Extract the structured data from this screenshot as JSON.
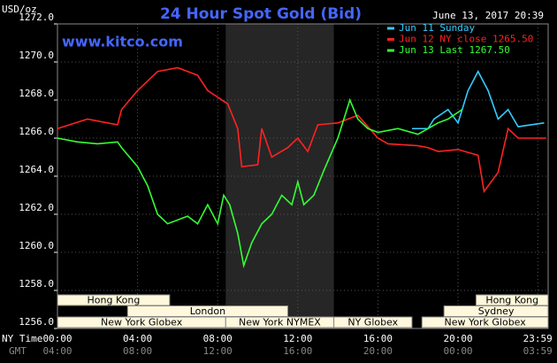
{
  "chart_data": {
    "type": "line",
    "title": "24 Hour Spot Gold (Bid)",
    "subtitle": "www.kitco.com",
    "timestamp": "June 13, 2017 20:39",
    "y_label": "USD/oz",
    "x_label": "NY Time",
    "x2_label": "GMT",
    "grid": true,
    "xlim": [
      0,
      24.5
    ],
    "ylim": [
      1256,
      1272
    ],
    "yticks": [
      {
        "value": 1256,
        "label": "1256.0"
      },
      {
        "value": 1258,
        "label": "1258.0"
      },
      {
        "value": 1260,
        "label": "1260.0"
      },
      {
        "value": 1262,
        "label": "1262.0"
      },
      {
        "value": 1264,
        "label": "1264.0"
      },
      {
        "value": 1266,
        "label": "1266.0"
      },
      {
        "value": 1268,
        "label": "1268.0"
      },
      {
        "value": 1270,
        "label": "1270.0"
      },
      {
        "value": 1272,
        "label": "1272.0"
      }
    ],
    "xticks": [
      {
        "value": 0,
        "label": "00:00"
      },
      {
        "value": 4,
        "label": "04:00"
      },
      {
        "value": 8,
        "label": "08:00"
      },
      {
        "value": 12,
        "label": "12:00"
      },
      {
        "value": 16,
        "label": "16:00"
      },
      {
        "value": 20,
        "label": "20:00"
      },
      {
        "value": 23.98,
        "label": "23:59"
      }
    ],
    "gmt_tick_labels": [
      "04:00",
      "08:00",
      "12:00",
      "16:00",
      "20:00",
      "00:00",
      "03:59"
    ],
    "highlight_x": [
      8.4,
      13.8
    ],
    "series": [
      {
        "name": "Jun 11 Sunday",
        "color": "#33ccff",
        "x": [
          17.7,
          18.5,
          18.8,
          19.5,
          20,
          20.5,
          21,
          21.5,
          22,
          22.5,
          23,
          24.3
        ],
        "values": [
          1266.5,
          1266.5,
          1267,
          1267.5,
          1266.8,
          1268.5,
          1269.5,
          1268.5,
          1267,
          1267.5,
          1266.6,
          1266.8
        ]
      },
      {
        "name": "Jun 12 NY close 1265.50",
        "color": "#ff2222",
        "x": [
          0,
          1.5,
          3,
          3.2,
          4,
          5,
          6,
          7,
          7.5,
          8.5,
          9,
          9.2,
          10,
          10.2,
          10.7,
          11.5,
          12,
          12.5,
          13,
          14,
          15,
          16,
          16.5,
          18,
          18.5,
          19,
          20,
          21,
          21.3,
          22,
          22.5,
          23,
          24.4
        ],
        "values": [
          1266.5,
          1267,
          1266.7,
          1267.5,
          1268.5,
          1269.5,
          1269.7,
          1269.3,
          1268.5,
          1267.8,
          1266.5,
          1264.5,
          1264.6,
          1266.5,
          1265,
          1265.5,
          1266,
          1265.3,
          1266.7,
          1266.8,
          1267.2,
          1266,
          1265.7,
          1265.6,
          1265.5,
          1265.3,
          1265.4,
          1265.1,
          1263.2,
          1264.2,
          1266.5,
          1266,
          1266
        ]
      },
      {
        "name": "Jun 13 Last 1267.50",
        "color": "#33ff33",
        "x": [
          0,
          1,
          2,
          3,
          3.2,
          4,
          4.5,
          5,
          5.5,
          6.5,
          7,
          7.5,
          8,
          8.3,
          8.6,
          9,
          9.3,
          9.7,
          10.2,
          10.7,
          11.2,
          11.7,
          12,
          12.3,
          12.8,
          13.3,
          14,
          14.6,
          15,
          15.5,
          16,
          17,
          18,
          18.5,
          19,
          19.5,
          20.2
        ],
        "values": [
          1266,
          1265.8,
          1265.7,
          1265.8,
          1265.5,
          1264.5,
          1263.5,
          1262,
          1261.5,
          1261.9,
          1261.5,
          1262.5,
          1261.5,
          1263,
          1262.5,
          1261,
          1259.3,
          1260.5,
          1261.5,
          1262,
          1263,
          1262.5,
          1263.7,
          1262.5,
          1263,
          1264.3,
          1266,
          1268,
          1267,
          1266.5,
          1266.3,
          1266.5,
          1266.2,
          1266.5,
          1266.8,
          1267,
          1267.5
        ]
      }
    ],
    "sessions": [
      {
        "name": "Hong Kong",
        "start": 0,
        "end": 5.6,
        "row": 0
      },
      {
        "name": "London",
        "start": 3.5,
        "end": 11.5,
        "row": 1
      },
      {
        "name": "New York Globex",
        "start": 0,
        "end": 8.4,
        "row": 2
      },
      {
        "name": "New York NYMEX",
        "start": 8.4,
        "end": 13.8,
        "row": 2
      },
      {
        "name": "NY Globex",
        "start": 13.8,
        "end": 17.7,
        "row": 2
      },
      {
        "name": "Hong Kong",
        "start": 20.9,
        "end": 24.5,
        "row": 0
      },
      {
        "name": "Sydney",
        "start": 19.3,
        "end": 24.5,
        "row": 1
      },
      {
        "name": "New York Globex",
        "start": 18.2,
        "end": 24.5,
        "row": 2
      }
    ]
  }
}
